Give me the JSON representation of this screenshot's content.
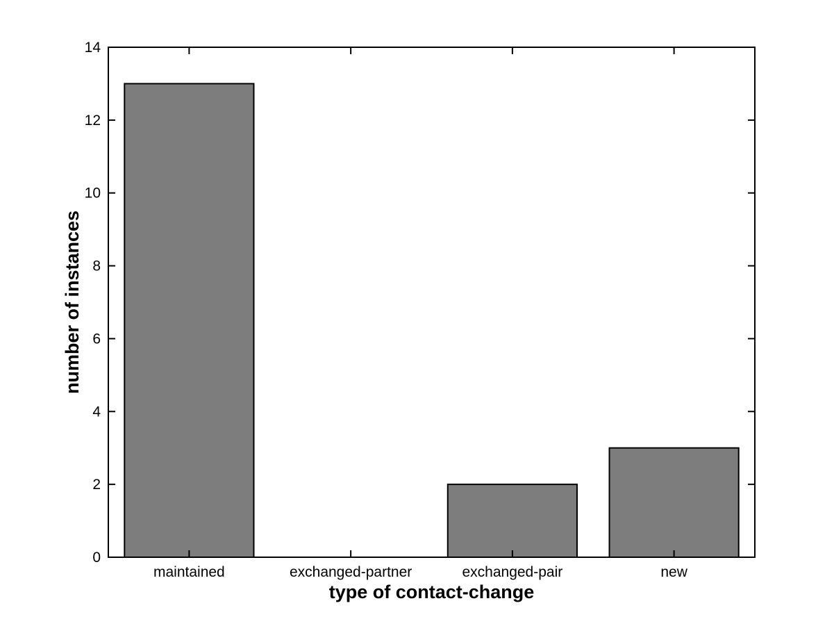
{
  "chart_data": {
    "type": "bar",
    "title": "",
    "categories": [
      "maintained",
      "exchanged-partner",
      "exchanged-pair",
      "new"
    ],
    "values": [
      13,
      0,
      2,
      3
    ],
    "xlabel": "type of contact-change",
    "ylabel": "number of instances",
    "ylim": [
      0,
      14
    ],
    "yticks": [
      0,
      2,
      4,
      6,
      8,
      10,
      12,
      14
    ],
    "ytick_labels": [
      "0",
      "2",
      "4",
      "6",
      "8",
      "10",
      "12",
      "14"
    ],
    "bar_width_fraction": 0.8,
    "grid": false,
    "legend": null,
    "colors": {
      "bar_fill": "#7d7d7d",
      "bar_edge": "#000000",
      "axis": "#000000",
      "text": "#000000",
      "background": "#ffffff"
    }
  }
}
